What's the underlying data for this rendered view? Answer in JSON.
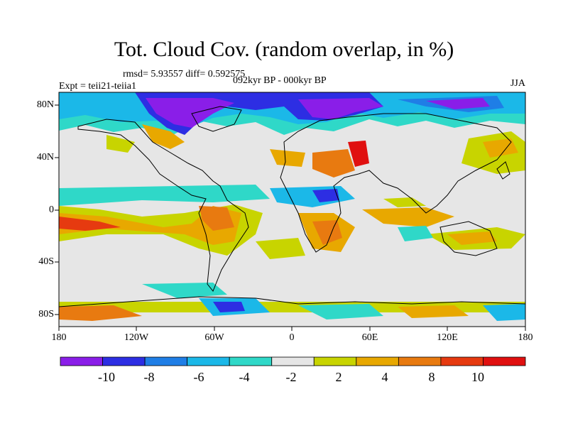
{
  "title": "Tot. Cloud Cov. (random overlap, in %)",
  "stats": "rmsd= 5.93557 diff= 0.592575",
  "experiment": "Expt = teii21-teiia1",
  "period": "092kyr BP - 000kyr BP",
  "season": "JJA",
  "lat_labels": [
    "80N",
    "40N",
    "0",
    "40S",
    "80S"
  ],
  "lon_labels": [
    "180",
    "120W",
    "60W",
    "0",
    "60E",
    "120E",
    "180"
  ],
  "colorbar": {
    "labels": [
      "-10",
      "-8",
      "-6",
      "-4",
      "-2",
      "2",
      "4",
      "8",
      "10"
    ],
    "colors": [
      "#8a1ee8",
      "#2d2ee3",
      "#1f7ee6",
      "#1bb8e8",
      "#2fd8c8",
      "#e6e6e6",
      "#c8d400",
      "#e8a800",
      "#e87a10",
      "#e63a10",
      "#e01010"
    ]
  }
}
